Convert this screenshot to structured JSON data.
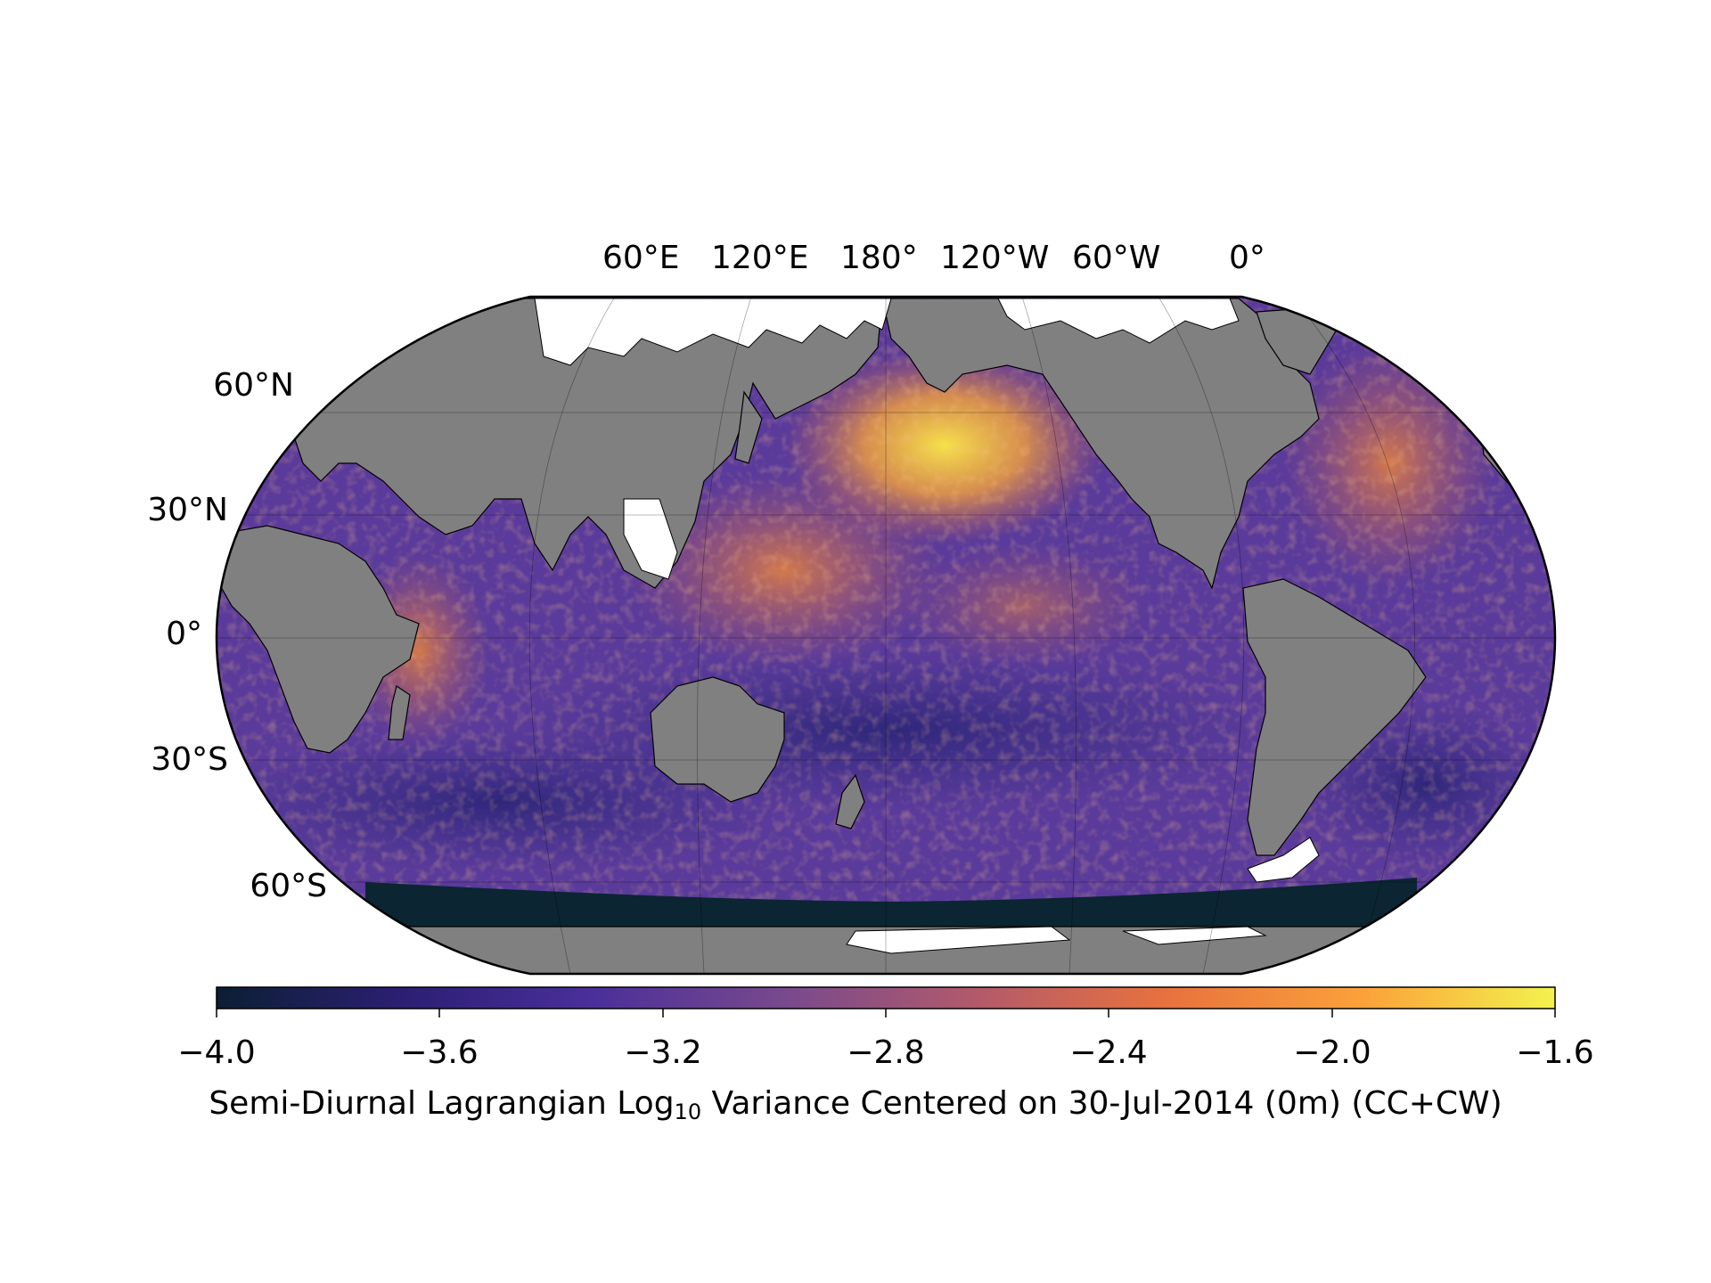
{
  "map": {
    "projection": "robinson",
    "central_longitude": 180,
    "gridlines": true,
    "land_color": "#808080",
    "ice_color": "#ffffff",
    "coastline_color": "#000000",
    "longitude_labels": [
      "60°E",
      "120°E",
      "180°",
      "120°W",
      "60°W",
      "0°"
    ],
    "latitude_labels": [
      "60°N",
      "30°N",
      "0°",
      "30°S",
      "60°S"
    ]
  },
  "colorbar": {
    "colormap": "plasma-like",
    "colors": [
      "#0b1f33",
      "#2c1f73",
      "#4a2f9a",
      "#7a4a8c",
      "#b35a6a",
      "#e8723e",
      "#fba33a",
      "#f3f24e"
    ],
    "range": [
      -4.0,
      -1.6
    ],
    "ticks": [
      "−4.0",
      "−3.6",
      "−3.2",
      "−2.8",
      "−2.4",
      "−2.0",
      "−1.6"
    ],
    "caption_before": "Semi-Diurnal Lagrangian Log",
    "caption_sub": "10",
    "caption_after": " Variance Centered on 30-Jul-2014 (0m) (CC+CW)"
  }
}
